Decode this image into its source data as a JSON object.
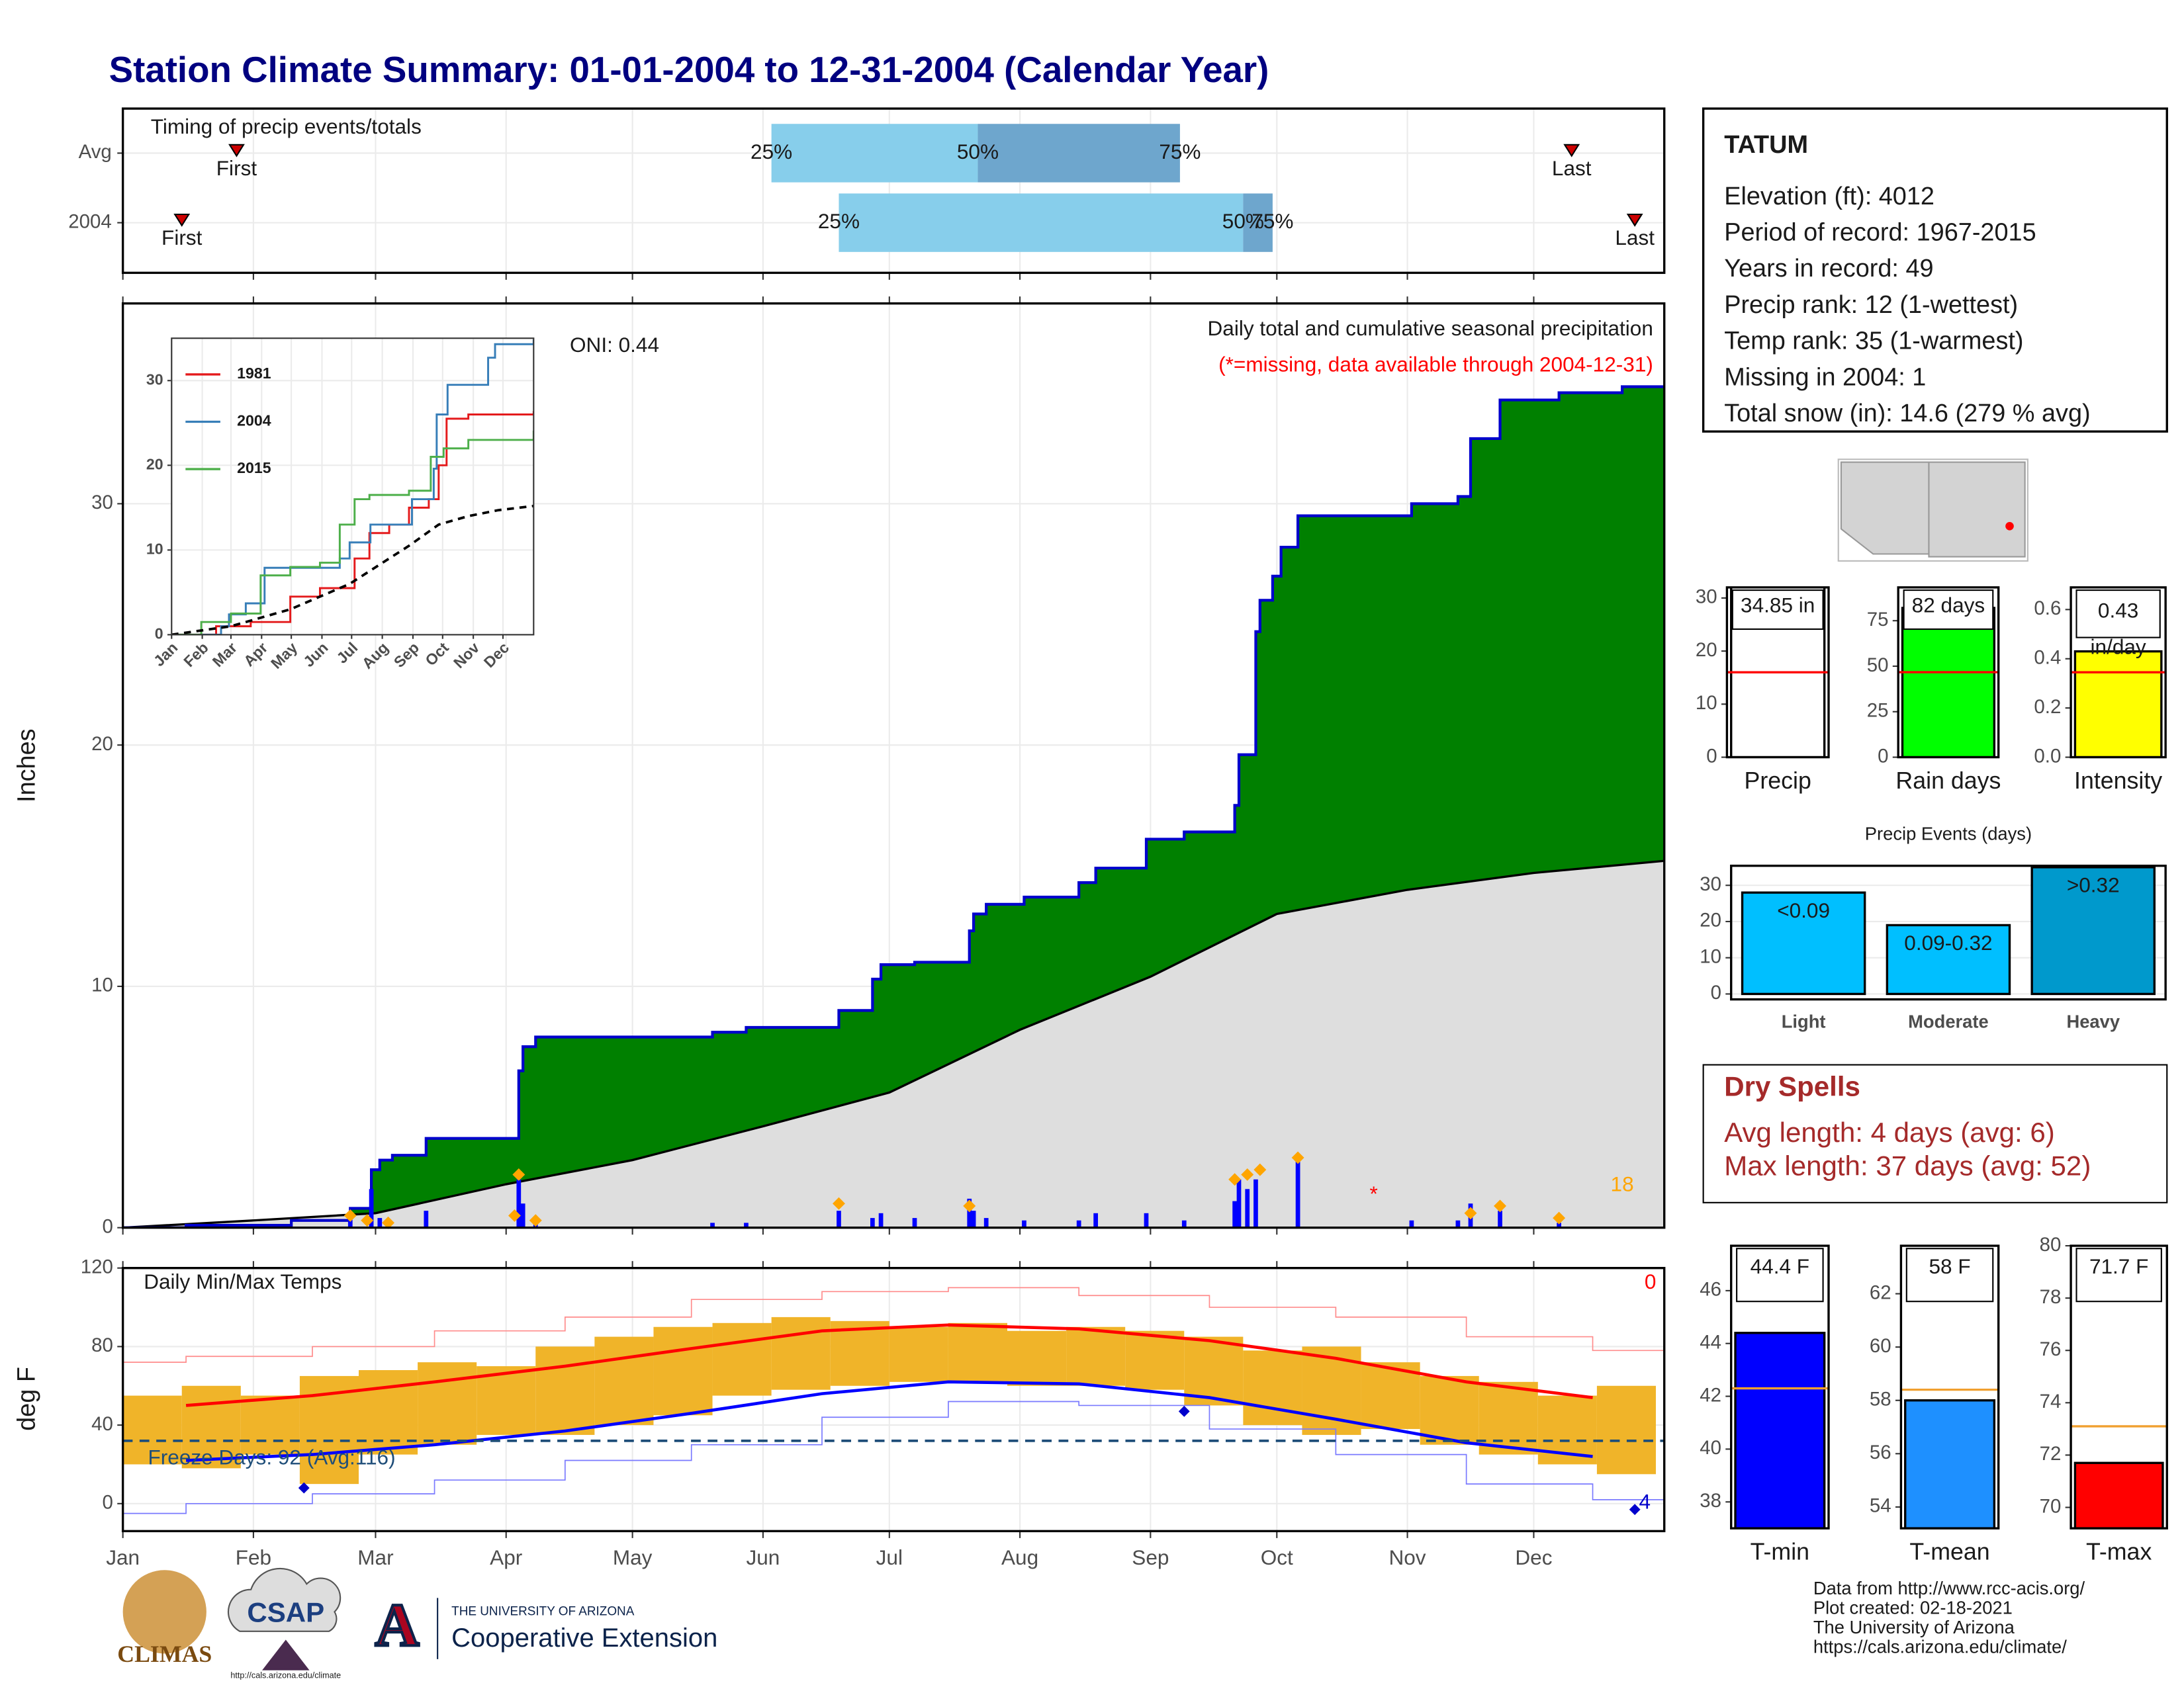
{
  "title": "Station Climate Summary: 01-01-2004 to 12-31-2004 (Calendar Year)",
  "chart_data": [
    {
      "type": "timing",
      "title": "Timing of precip events/totals",
      "categories": [
        "Avg",
        "2004"
      ],
      "series": [
        {
          "name": "First",
          "color": "#cc0000",
          "values": [
            27,
            14
          ]
        },
        {
          "name": "25%",
          "color": "#87ceeb",
          "values": [
            154,
            170
          ]
        },
        {
          "name": "50%",
          "color": "#6ea6cd",
          "values": [
            203,
            266
          ]
        },
        {
          "name": "75%",
          "values": [
            251,
            273
          ]
        },
        {
          "name": "Last",
          "color": "#cc0000",
          "values": [
            344,
            359
          ]
        }
      ],
      "xlim": [
        0,
        366
      ],
      "xticks": [
        0,
        31,
        60,
        91,
        121,
        152,
        182,
        213,
        244,
        274,
        305,
        335
      ],
      "grid": true
    },
    {
      "type": "precip",
      "ylabel": "Inches",
      "subtitle": "Daily total and cumulative seasonal precipitation",
      "note": "(*=missing, data available through 2004-12-31)",
      "oni": "ONI: 0.44",
      "xlim": [
        0,
        366
      ],
      "xticks": [
        0,
        31,
        60,
        91,
        121,
        152,
        182,
        213,
        244,
        274,
        305,
        335
      ],
      "ylim": [
        0,
        38.3
      ],
      "yticks": [
        0,
        10,
        20,
        30
      ],
      "grid": true,
      "series": [
        {
          "style": "step-area",
          "color": "#008000",
          "line_color": "#0000cc",
          "x": [
            0,
            15,
            40,
            54,
            59,
            61,
            64,
            72,
            94,
            95,
            98,
            140,
            148,
            170,
            178,
            180,
            188,
            201,
            202,
            205,
            214,
            227,
            231,
            243,
            252,
            264,
            265,
            269,
            270,
            273,
            275,
            279,
            306,
            317,
            320,
            327,
            341,
            356,
            366
          ],
          "values": [
            0,
            0.1,
            0.3,
            0.8,
            2.4,
            2.8,
            3.0,
            3.7,
            6.5,
            7.5,
            7.9,
            8.1,
            8.3,
            9.0,
            10.3,
            10.9,
            11.0,
            12.3,
            13.0,
            13.4,
            13.7,
            14.3,
            14.9,
            16.1,
            16.4,
            17.5,
            19.6,
            24.7,
            26.0,
            27.0,
            28.2,
            29.5,
            30.0,
            30.3,
            32.7,
            34.3,
            34.6,
            34.85,
            34.85
          ]
        },
        {
          "style": "area",
          "color": "#dedede",
          "line_color": "#000000",
          "x": [
            0,
            31,
            60,
            91,
            121,
            152,
            182,
            213,
            244,
            274,
            305,
            335,
            366
          ],
          "values": [
            0,
            0.3,
            0.6,
            1.8,
            2.8,
            4.2,
            5.6,
            8.2,
            10.4,
            13.0,
            14.0,
            14.7,
            15.2
          ]
        },
        {
          "style": "bars",
          "color": "#0000ff",
          "x": [
            54,
            59,
            61,
            72,
            94,
            95,
            98,
            140,
            148,
            170,
            178,
            180,
            188,
            201,
            202,
            205,
            214,
            227,
            231,
            243,
            252,
            264,
            265,
            267,
            269,
            279,
            306,
            317,
            320,
            327,
            341
          ],
          "values": [
            0.5,
            1.6,
            0.4,
            0.7,
            2.0,
            1.0,
            0.4,
            0.2,
            0.2,
            0.7,
            0.4,
            0.6,
            0.4,
            1.2,
            0.7,
            0.4,
            0.3,
            0.3,
            0.6,
            0.6,
            0.3,
            1.1,
            2.0,
            1.6,
            2.0,
            2.9,
            0.3,
            0.3,
            1.0,
            0.7,
            0.2
          ]
        },
        {
          "style": "points",
          "color": "#ffa500",
          "x": [
            54,
            58,
            63,
            93,
            94,
            98,
            170,
            201,
            264,
            267,
            270,
            279,
            320,
            327,
            341
          ],
          "values": [
            0.5,
            0.3,
            0.2,
            0.5,
            2.2,
            0.3,
            1.0,
            0.9,
            2.0,
            2.2,
            2.4,
            2.9,
            0.6,
            0.9,
            0.4
          ]
        }
      ],
      "annotations": [
        {
          "text": "18",
          "x": 356,
          "y": 1.4,
          "color": "#ffa500"
        },
        {
          "text": "*",
          "x": 297,
          "y": 1.0,
          "color": "#ff0000"
        }
      ]
    },
    {
      "type": "line",
      "step": true,
      "xlim": [
        0,
        366
      ],
      "xticks": [
        {
          "value": 0,
          "label": "Jan"
        },
        {
          "value": 31,
          "label": "Feb"
        },
        {
          "value": 60,
          "label": "Mar"
        },
        {
          "value": 91,
          "label": "Apr"
        },
        {
          "value": 121,
          "label": "May"
        },
        {
          "value": 152,
          "label": "Jun"
        },
        {
          "value": 182,
          "label": "Jul"
        },
        {
          "value": 213,
          "label": "Aug"
        },
        {
          "value": 244,
          "label": "Sep"
        },
        {
          "value": 274,
          "label": "Oct"
        },
        {
          "value": 305,
          "label": "Nov"
        },
        {
          "value": 335,
          "label": "Dec"
        }
      ],
      "ylim": [
        0,
        35
      ],
      "yticks": [
        0,
        10,
        20,
        30
      ],
      "series": [
        {
          "name": "1981",
          "color": "#e41a1c",
          "x": [
            0,
            45,
            80,
            120,
            150,
            175,
            185,
            200,
            220,
            240,
            260,
            270,
            278,
            300,
            366
          ],
          "values": [
            0,
            1,
            1.5,
            4.5,
            5.5,
            5.5,
            9,
            12,
            13,
            15,
            16,
            20,
            25.5,
            26,
            26.4
          ]
        },
        {
          "name": "2004",
          "color": "#377eb8",
          "x": [
            0,
            50,
            58,
            75,
            94,
            170,
            180,
            201,
            243,
            265,
            268,
            279,
            320,
            327,
            366
          ],
          "values": [
            0,
            1,
            2.4,
            3.7,
            7.9,
            9,
            10.9,
            13,
            16,
            19.6,
            26,
            29.5,
            32.7,
            34.3,
            34.85
          ]
        },
        {
          "name": "2015",
          "color": "#4daf4a",
          "x": [
            0,
            30,
            60,
            90,
            120,
            150,
            170,
            185,
            200,
            240,
            262,
            275,
            300,
            366
          ],
          "values": [
            0,
            1.5,
            2.5,
            7,
            8,
            8.5,
            13,
            16,
            16.5,
            17,
            21,
            22,
            23,
            24.1
          ]
        },
        {
          "color": "#000000",
          "dash": true,
          "x": [
            0,
            60,
            120,
            180,
            240,
            270,
            300,
            330,
            366
          ],
          "values": [
            0,
            1,
            3,
            6,
            10.5,
            13,
            14,
            14.7,
            15.2
          ]
        }
      ]
    },
    {
      "type": "temps",
      "title": "Daily Min/Max Temps",
      "ylabel": "deg F",
      "xlim": [
        0,
        366
      ],
      "xticks": [
        {
          "value": 0,
          "label": "Jan"
        },
        {
          "value": 31,
          "label": "Feb"
        },
        {
          "value": 60,
          "label": "Mar"
        },
        {
          "value": 91,
          "label": "Apr"
        },
        {
          "value": 121,
          "label": "May"
        },
        {
          "value": 152,
          "label": "Jun"
        },
        {
          "value": 182,
          "label": "Jul"
        },
        {
          "value": 213,
          "label": "Aug"
        },
        {
          "value": 244,
          "label": "Sep"
        },
        {
          "value": 274,
          "label": "Oct"
        },
        {
          "value": 305,
          "label": "Nov"
        },
        {
          "value": 335,
          "label": "Dec"
        }
      ],
      "ylim": [
        -14,
        120
      ],
      "yticks": [
        0,
        40,
        80,
        120
      ],
      "grid": true,
      "series": [
        {
          "style": "range",
          "color": "#f0b429",
          "x": [
            7,
            21,
            35,
            49,
            63,
            77,
            91,
            105,
            119,
            133,
            147,
            161,
            175,
            189,
            203,
            217,
            231,
            245,
            259,
            273,
            287,
            301,
            315,
            329,
            343,
            357
          ],
          "low": [
            20,
            18,
            25,
            10,
            25,
            30,
            35,
            35,
            40,
            45,
            55,
            58,
            60,
            62,
            62,
            60,
            60,
            58,
            50,
            40,
            35,
            38,
            30,
            25,
            20,
            15
          ],
          "values": [
            55,
            60,
            55,
            65,
            68,
            72,
            70,
            80,
            85,
            90,
            92,
            95,
            93,
            90,
            92,
            88,
            90,
            88,
            85,
            78,
            80,
            72,
            65,
            62,
            55,
            60
          ]
        },
        {
          "style": "line",
          "color": "#ff0000",
          "width": 2.2,
          "x": [
            15,
            45,
            74,
            105,
            135,
            166,
            196,
            227,
            258,
            288,
            319,
            349
          ],
          "values": [
            50,
            55,
            62,
            70,
            79,
            88,
            91,
            89,
            83,
            74,
            62,
            54
          ]
        },
        {
          "style": "line",
          "color": "#0000ff",
          "width": 2.2,
          "x": [
            15,
            45,
            74,
            105,
            135,
            166,
            196,
            227,
            258,
            288,
            319,
            349
          ],
          "values": [
            22,
            25,
            30,
            37,
            46,
            56,
            62,
            61,
            54,
            43,
            31,
            24
          ]
        },
        {
          "style": "step",
          "color": "#ff8c8c",
          "width": 0.8,
          "x": [
            0,
            15,
            45,
            74,
            105,
            135,
            166,
            196,
            227,
            258,
            288,
            319,
            349,
            366
          ],
          "values": [
            72,
            75,
            80,
            88,
            95,
            104,
            108,
            110,
            106,
            100,
            95,
            85,
            78,
            72
          ]
        },
        {
          "style": "step",
          "color": "#7a7aff",
          "width": 0.8,
          "x": [
            0,
            15,
            45,
            74,
            105,
            135,
            166,
            196,
            227,
            258,
            288,
            319,
            349,
            366
          ],
          "values": [
            -5,
            0,
            5,
            12,
            22,
            30,
            44,
            52,
            50,
            38,
            25,
            10,
            2,
            -5
          ]
        },
        {
          "style": "points",
          "color": "#0000cc",
          "x": [
            43,
            252,
            359
          ],
          "values": [
            8,
            47,
            -3
          ]
        }
      ],
      "freeze": {
        "value": 32,
        "label": "Freeze Days: 92 (Avg:116)",
        "color": "#1f4e79"
      },
      "annotations": [
        {
          "text": "0",
          "color": "#ff0000"
        },
        {
          "text": "4",
          "color": "#0000cc"
        }
      ]
    },
    {
      "type": "bar",
      "categories": [
        "Precip"
      ],
      "values": [
        34.85
      ],
      "value_labels": [
        "34.85 in"
      ],
      "color": "#ffffff",
      "avg": 16,
      "avg_color": "#ff0000",
      "ylim": [
        0,
        32
      ],
      "yticks": [
        0,
        10,
        20,
        30
      ]
    },
    {
      "type": "bar",
      "categories": [
        "Rain days"
      ],
      "values": [
        82
      ],
      "value_labels": [
        "82 days"
      ],
      "color": "#00ff00",
      "avg": 46.7,
      "avg_color": "#ff0000",
      "ylim": [
        0,
        93.3
      ],
      "yticks": [
        0,
        25,
        50,
        75
      ]
    },
    {
      "type": "bar",
      "categories": [
        "Intensity"
      ],
      "values": [
        0.43
      ],
      "value_labels": [
        "0.43 in/day"
      ],
      "label_wrap": true,
      "color": "#ffff00",
      "avg": 0.345,
      "avg_color": "#ff0000",
      "ylim": [
        0,
        0.69
      ],
      "yticks": [
        {
          "value": 0,
          "label": "0.0"
        },
        0.2,
        0.4,
        0.6
      ]
    },
    {
      "type": "bar",
      "title": "Precip Events (days)",
      "categories": [
        "Light",
        "Moderate",
        "Heavy"
      ],
      "values": [
        28,
        19,
        35
      ],
      "range_labels": [
        "<0.09",
        "0.09-0.32",
        ">0.32"
      ],
      "colors": [
        "#00bfff",
        "#00bfff",
        "#0099cc"
      ],
      "ylim": [
        -1.5,
        35.4
      ],
      "yticks": [
        0,
        10,
        20,
        30
      ],
      "grid": true
    },
    {
      "type": "bar",
      "categories": [
        "T-min"
      ],
      "values": [
        44.4
      ],
      "value_labels": [
        "44.4 F"
      ],
      "color": "#0000ff",
      "avg": 42.3,
      "avg_color": "#f0a030",
      "ylim": [
        37,
        47.7
      ],
      "yticks": [
        38,
        40,
        42,
        44,
        46
      ]
    },
    {
      "type": "bar",
      "categories": [
        "T-mean"
      ],
      "values": [
        58
      ],
      "value_labels": [
        "58 F"
      ],
      "color": "#1e90ff",
      "avg": 58.4,
      "avg_color": "#f0a030",
      "ylim": [
        53.2,
        63.8
      ],
      "yticks": [
        54,
        56,
        58,
        60,
        62
      ]
    },
    {
      "type": "bar",
      "categories": [
        "T-max"
      ],
      "values": [
        71.7
      ],
      "value_labels": [
        "71.7 F"
      ],
      "color": "#ff0000",
      "avg": 73.1,
      "avg_color": "#f0a030",
      "ylim": [
        69.2,
        80
      ],
      "yticks": [
        70,
        72,
        74,
        76,
        78,
        80
      ]
    }
  ],
  "station": {
    "name": "TATUM",
    "lines": [
      "Elevation (ft): 4012",
      "Period of record: 1967-2015",
      "Years in record: 49",
      "Precip rank: 12 (1-wettest)",
      "Temp rank: 35 (1-warmest)",
      "Missing in 2004: 1",
      "Total snow (in): 14.6 (279 % avg)"
    ]
  },
  "dry_spells": {
    "title": "Dry Spells",
    "lines": [
      "Avg length: 4 days (avg: 6)",
      "Max length: 37 days (avg: 52)"
    ]
  },
  "footer": {
    "climas": "CLIMAS",
    "csap": "CSAP",
    "csap_url": "http://cals.arizona.edu/climate",
    "ua_logo": "A",
    "university": "THE UNIVERSITY OF ARIZONA",
    "extension": "Cooperative Extension",
    "credits": [
      "Data from http://www.rcc-acis.org/",
      "Plot created: 02-18-2021",
      "The University of Arizona",
      "https://cals.arizona.edu/climate/"
    ]
  }
}
